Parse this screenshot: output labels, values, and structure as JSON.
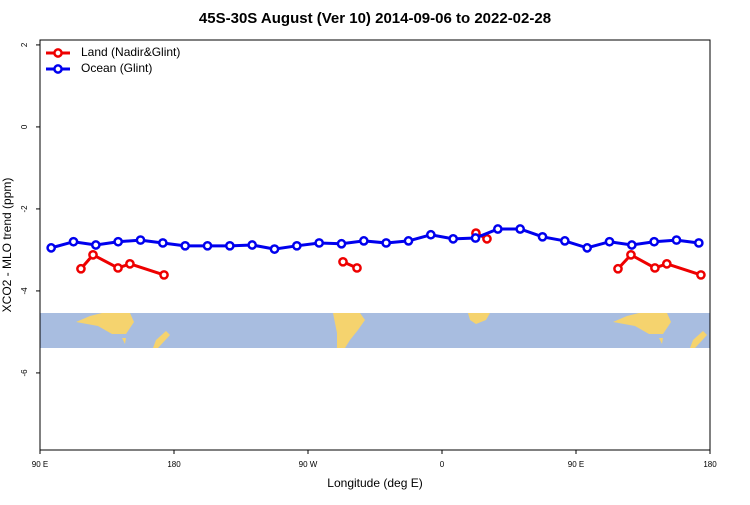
{
  "chart_data": {
    "type": "line",
    "title": "45S-30S August (Ver 10)   2014-09-06 to 2022-02-28",
    "x_label": "Longitude (deg E)",
    "y_label": "XCO2 - MLO trend (ppm)",
    "xlim": [
      90,
      540
    ],
    "ylim": [
      -7.88,
      2.12
    ],
    "xticks": [
      {
        "value": 90,
        "label": "90 E"
      },
      {
        "value": 180,
        "label": "180"
      },
      {
        "value": 270,
        "label": "90 W"
      },
      {
        "value": 360,
        "label": "0"
      },
      {
        "value": 450,
        "label": "90 E"
      },
      {
        "value": 540,
        "label": "180"
      }
    ],
    "yticks": [
      2,
      0,
      -2,
      -4,
      -6
    ],
    "legend": "top-left",
    "series": [
      {
        "name": "Land (Nadir&Glint)",
        "color": "#ee0000",
        "x": [
          117.5,
          125.6,
          142.4,
          150.4,
          173.3,
          null,
          293.5,
          302.9,
          null,
          382.8,
          390.2,
          null,
          478.2,
          486.9,
          503.0,
          511.0,
          533.9
        ],
        "values": [
          -3.46,
          -3.12,
          -3.44,
          -3.34,
          -3.61,
          null,
          -3.29,
          -3.44,
          null,
          -2.59,
          -2.73,
          null,
          -3.46,
          -3.12,
          -3.44,
          -3.34,
          -3.61
        ]
      },
      {
        "name": "Ocean (Glint)",
        "color": "#0000ee",
        "x": [
          97.5,
          112.5,
          127.5,
          142.5,
          157.5,
          172.5,
          187.5,
          202.5,
          217.5,
          232.5,
          247.5,
          262.5,
          277.5,
          292.5,
          307.5,
          322.5,
          337.5,
          352.5,
          367.5,
          382.5,
          397.5,
          412.5,
          427.5,
          442.5,
          457.5,
          472.5,
          487.5,
          502.5,
          517.5,
          532.5
        ],
        "values": [
          -2.95,
          -2.8,
          -2.88,
          -2.8,
          -2.76,
          -2.83,
          -2.9,
          -2.9,
          -2.9,
          -2.88,
          -2.98,
          -2.9,
          -2.83,
          -2.85,
          -2.78,
          -2.83,
          -2.78,
          -2.63,
          -2.73,
          -2.71,
          -2.49,
          -2.49,
          -2.68,
          -2.78,
          -2.95,
          -2.8,
          -2.88,
          -2.8,
          -2.76,
          -2.83
        ]
      }
    ]
  }
}
